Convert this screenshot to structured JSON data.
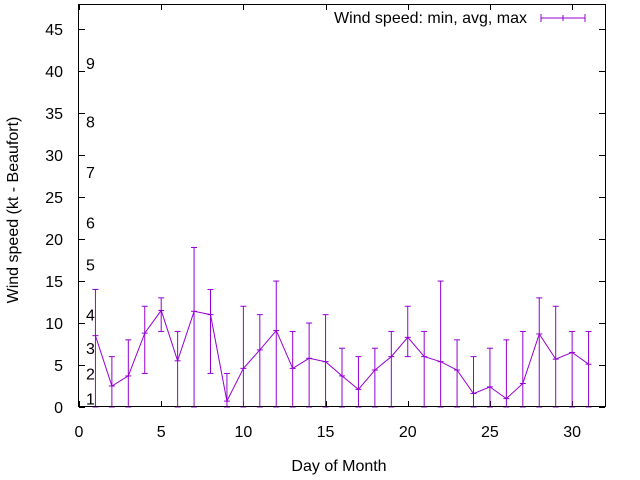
{
  "chart_data": {
    "type": "line",
    "title": "",
    "xlabel": "Day of Month",
    "ylabel": "Wind speed (kt - Beaufort)",
    "xlim": [
      0,
      32
    ],
    "ylim": [
      0,
      48
    ],
    "xticks": [
      0,
      5,
      10,
      15,
      20,
      25,
      30
    ],
    "yticks": [
      0,
      5,
      10,
      15,
      20,
      25,
      30,
      35,
      40,
      45
    ],
    "beaufort_labels": [
      {
        "label": "1",
        "y": 1
      },
      {
        "label": "2",
        "y": 4
      },
      {
        "label": "3",
        "y": 7
      },
      {
        "label": "4",
        "y": 11
      },
      {
        "label": "5",
        "y": 17
      },
      {
        "label": "6",
        "y": 22
      },
      {
        "label": "7",
        "y": 28
      },
      {
        "label": "8",
        "y": 34
      },
      {
        "label": "9",
        "y": 41
      }
    ],
    "series": [
      {
        "name": "Wind speed: min, avg, max",
        "color": "#9400d3",
        "x": [
          1,
          2,
          3,
          4,
          5,
          6,
          7,
          8,
          9,
          10,
          11,
          12,
          13,
          14,
          15,
          16,
          17,
          18,
          19,
          20,
          21,
          22,
          23,
          24,
          25,
          26,
          27,
          28,
          29,
          30,
          31
        ],
        "avg": [
          8.5,
          2.5,
          3.7,
          8.8,
          11.5,
          5.5,
          11.4,
          11.0,
          0.7,
          4.6,
          6.8,
          9.1,
          4.6,
          5.8,
          5.4,
          3.7,
          2.1,
          4.4,
          6.0,
          8.3,
          6.0,
          5.4,
          4.4,
          1.6,
          2.4,
          1.0,
          2.8,
          8.7,
          5.7,
          6.5,
          5.1
        ],
        "min": [
          0,
          0,
          0,
          4,
          9,
          0,
          0,
          4,
          0,
          0,
          0,
          0,
          0,
          0,
          0,
          0,
          0,
          0,
          0,
          6,
          0,
          0,
          0,
          0,
          0,
          0,
          0,
          0,
          0,
          0,
          0
        ],
        "max": [
          14,
          6,
          8,
          12,
          13,
          9,
          19,
          14,
          4,
          12,
          11,
          15,
          9,
          10,
          11,
          7,
          6,
          7,
          9,
          12,
          9,
          15,
          8,
          6,
          7,
          8,
          9,
          13,
          12,
          9,
          9
        ]
      }
    ]
  }
}
